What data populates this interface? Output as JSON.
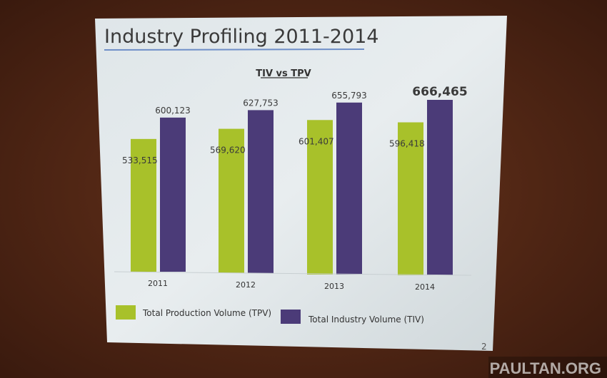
{
  "slide": {
    "title": "Industry Profiling 2011-2014",
    "page_number": "2"
  },
  "watermark": "PAULTAN.ORG",
  "chart_data": {
    "type": "bar",
    "title": "TIV vs TPV",
    "categories": [
      "2011",
      "2012",
      "2013",
      "2014"
    ],
    "series": [
      {
        "name": "Total Production Volume (TPV)",
        "values": [
          533515,
          569620,
          601407,
          596418
        ],
        "labels": [
          "533,515",
          "569,620",
          "601,407",
          "596,418"
        ],
        "color": "#a8c12a"
      },
      {
        "name": "Total Industry Volume (TIV)",
        "values": [
          600123,
          627753,
          655793,
          666465
        ],
        "labels": [
          "600,123",
          "627,753",
          "655,793",
          "666,465"
        ],
        "color": "#4b3b78"
      }
    ],
    "xlabel": "",
    "ylabel": "",
    "ylim": [
      120000,
      700000
    ],
    "grid": false,
    "legend": "bottom",
    "highlight": "666,465"
  },
  "colors": {
    "background": "#4a2414",
    "slide": "#e4eaec",
    "title_rule": "#6f8fc8"
  }
}
